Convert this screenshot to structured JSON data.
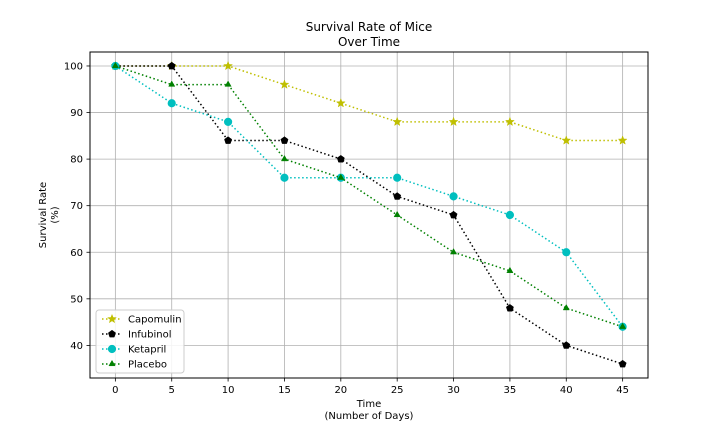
{
  "chart_data": {
    "type": "line",
    "title_line1": "Survival Rate of Mice",
    "title_line2": "Over Time",
    "xlabel_line1": "Time",
    "xlabel_line2": "(Number of Days)",
    "ylabel_line1": "Survival Rate",
    "ylabel_line2": "(%)",
    "x": [
      0,
      5,
      10,
      15,
      20,
      25,
      30,
      35,
      40,
      45
    ],
    "xlim": [
      -2.25,
      47.25
    ],
    "ylim": [
      33,
      103
    ],
    "xticks": [
      0,
      5,
      10,
      15,
      20,
      25,
      30,
      35,
      40,
      45
    ],
    "yticks": [
      40,
      50,
      60,
      70,
      80,
      90,
      100
    ],
    "grid": true,
    "legend_position": "bottom-left",
    "series": [
      {
        "name": "Capomulin",
        "color": "#bfbf00",
        "marker": "star",
        "values": [
          100,
          100,
          100,
          96,
          92,
          88,
          88,
          88,
          84,
          84
        ]
      },
      {
        "name": "Infubinol",
        "color": "#000000",
        "marker": "pentagon",
        "values": [
          100,
          100,
          84,
          84,
          80,
          72,
          68,
          48,
          40,
          36
        ]
      },
      {
        "name": "Ketapril",
        "color": "#00bfbf",
        "marker": "circle",
        "values": [
          100,
          92,
          88,
          76,
          76,
          76,
          72,
          68,
          60,
          44
        ]
      },
      {
        "name": "Placebo",
        "color": "#008000",
        "marker": "triangle",
        "values": [
          100,
          96,
          96,
          80,
          76,
          68,
          60,
          56,
          48,
          44
        ]
      }
    ]
  }
}
